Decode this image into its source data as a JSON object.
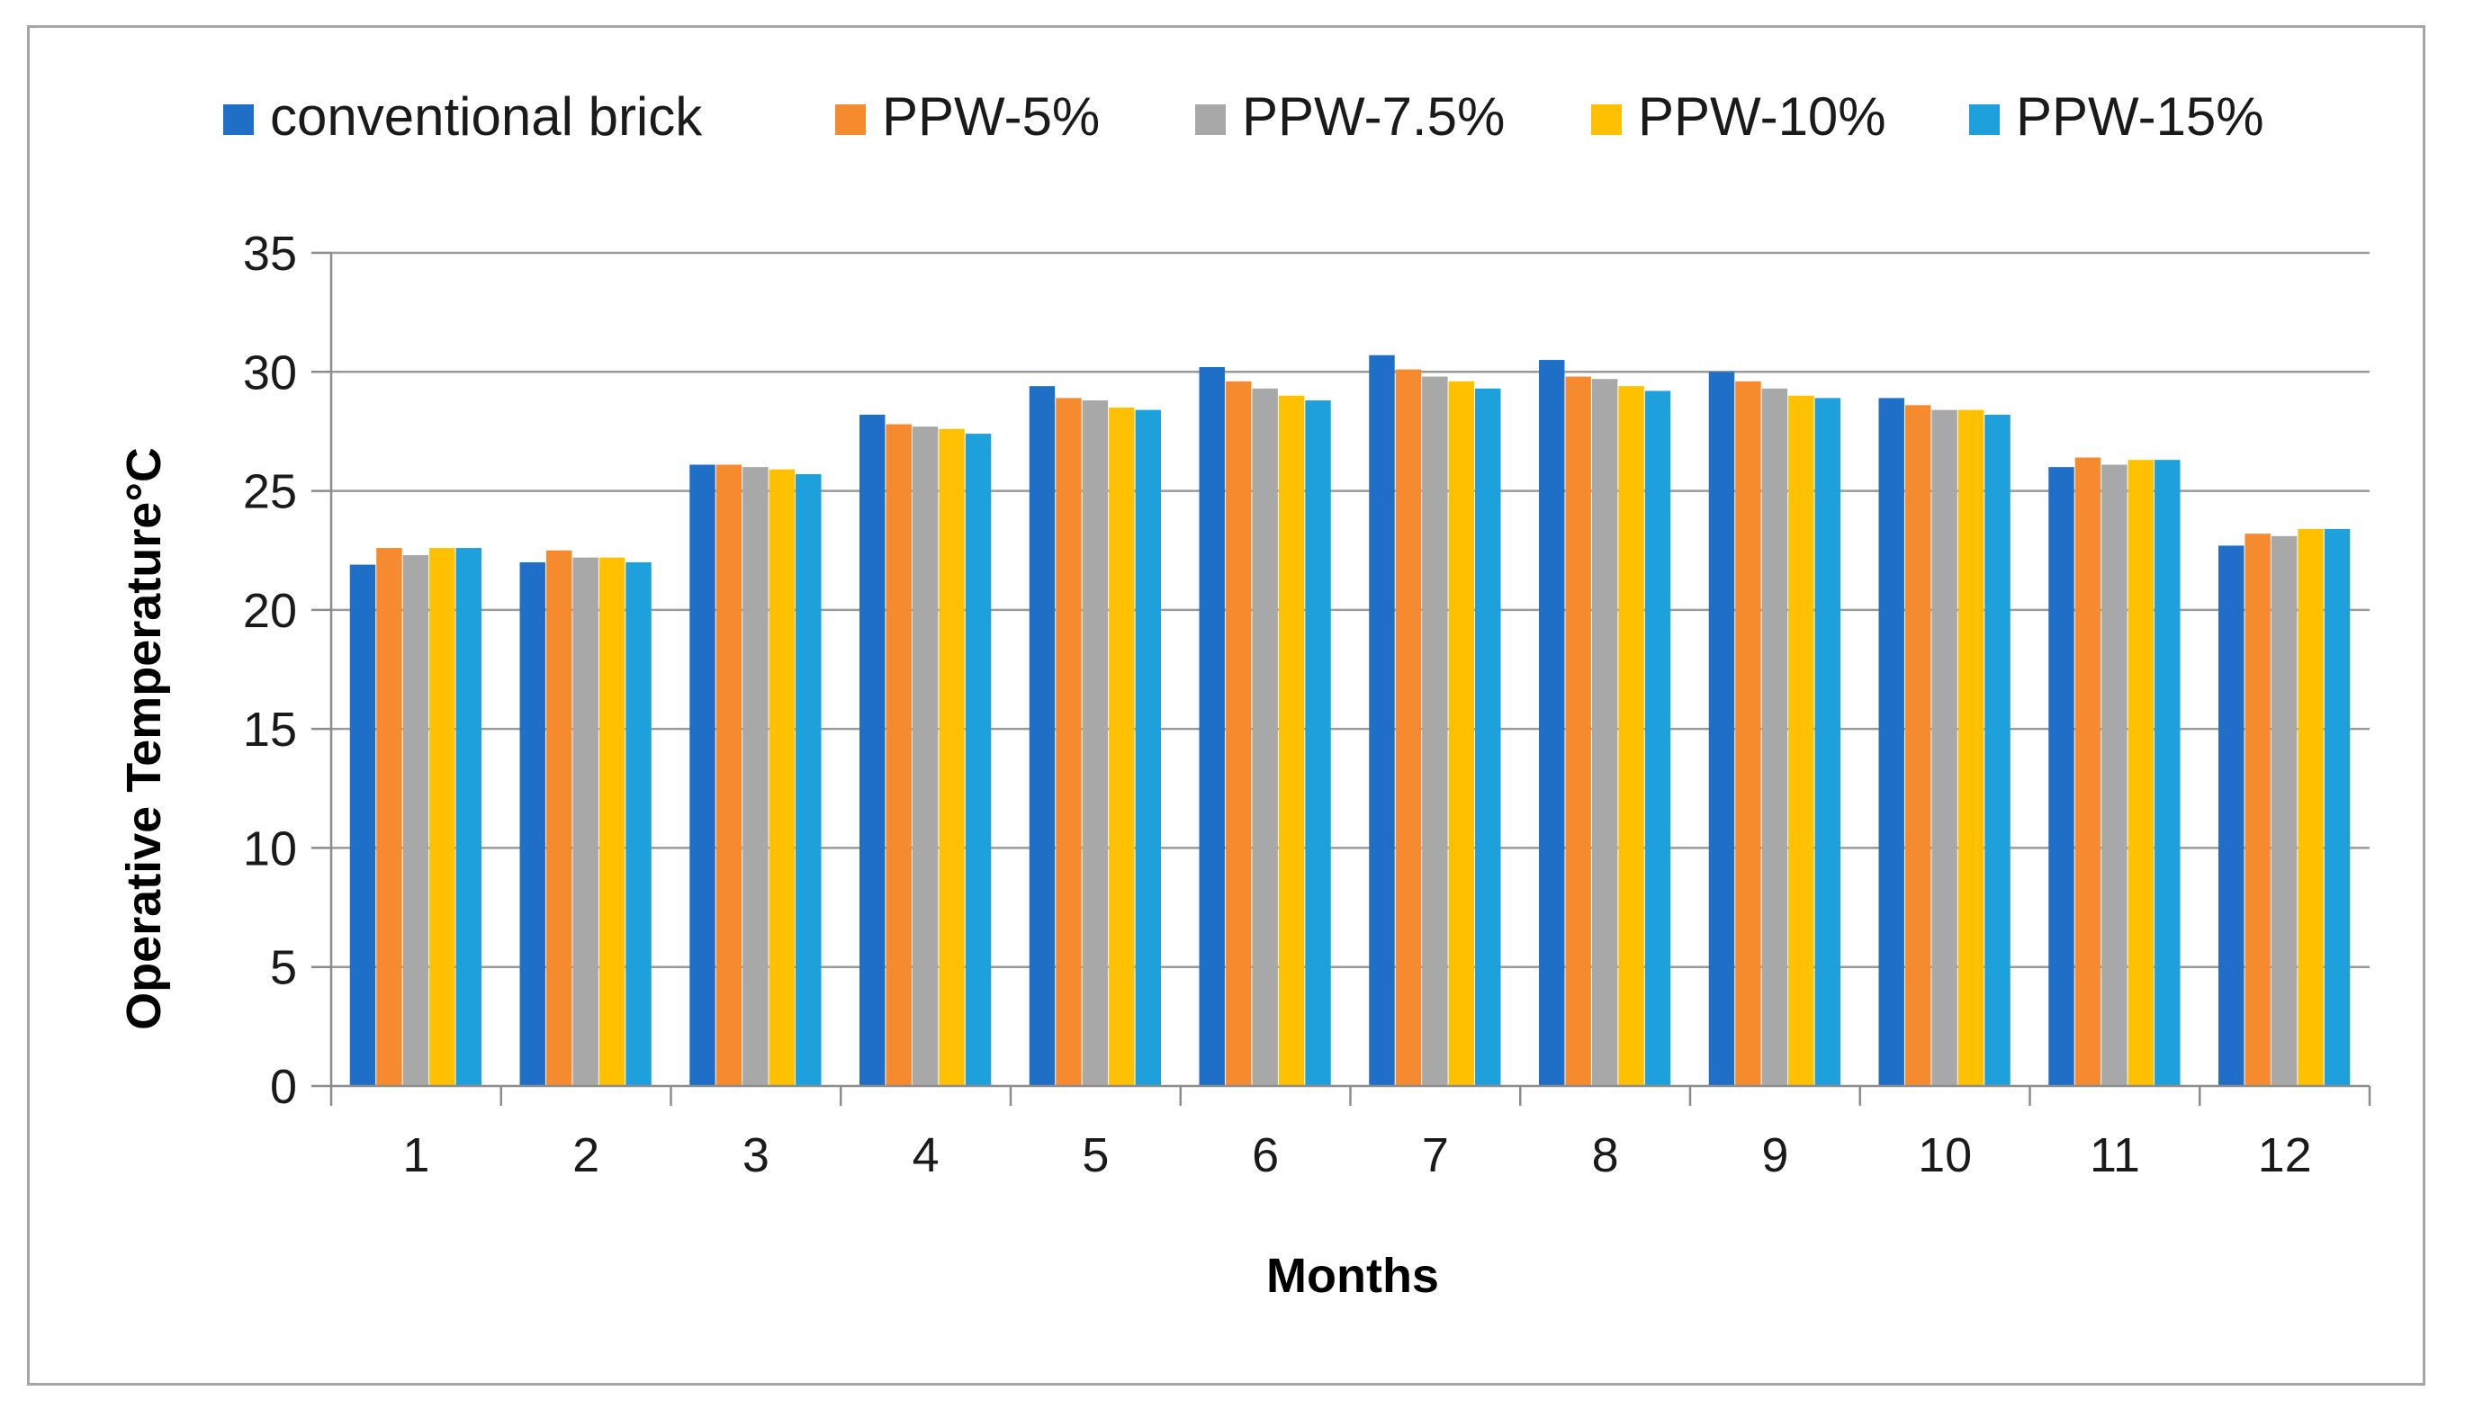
{
  "chart_data": {
    "type": "bar",
    "title": "",
    "xlabel": "Months",
    "ylabel": "Operative Temperature°C",
    "ylim": [
      0,
      35
    ],
    "yticks": [
      0,
      5,
      10,
      15,
      20,
      25,
      30,
      35
    ],
    "grid": true,
    "legend_position": "top",
    "categories": [
      "1",
      "2",
      "3",
      "4",
      "5",
      "6",
      "7",
      "8",
      "9",
      "10",
      "11",
      "12"
    ],
    "series": [
      {
        "name": "conventional brick",
        "color": "#1f6fc9",
        "values": [
          21.9,
          22.0,
          26.1,
          28.2,
          29.4,
          30.2,
          30.7,
          30.5,
          30.0,
          28.9,
          26.0,
          22.7
        ]
      },
      {
        "name": "PPW-5%",
        "color": "#f58a2e",
        "values": [
          22.6,
          22.5,
          26.1,
          27.8,
          28.9,
          29.6,
          30.1,
          29.8,
          29.6,
          28.6,
          26.4,
          23.2
        ]
      },
      {
        "name": "PPW-7.5%",
        "color": "#a8a8a8",
        "values": [
          22.3,
          22.2,
          26.0,
          27.7,
          28.8,
          29.3,
          29.8,
          29.7,
          29.3,
          28.4,
          26.1,
          23.1
        ]
      },
      {
        "name": "PPW-10%",
        "color": "#ffc000",
        "values": [
          22.6,
          22.2,
          25.9,
          27.6,
          28.5,
          29.0,
          29.6,
          29.4,
          29.0,
          28.4,
          26.3,
          23.4
        ]
      },
      {
        "name": "PPW-15%",
        "color": "#1ea0dc",
        "values": [
          22.6,
          22.0,
          25.7,
          27.4,
          28.4,
          28.8,
          29.3,
          29.2,
          28.9,
          28.2,
          26.3,
          23.4
        ]
      }
    ]
  }
}
